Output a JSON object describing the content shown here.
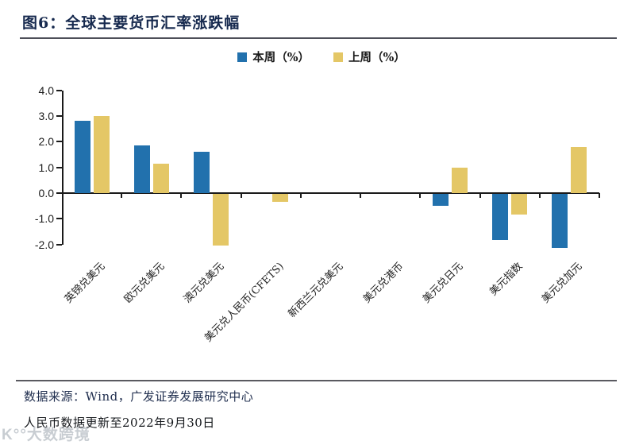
{
  "title": "图6：全球主要货币汇率涨跌幅",
  "legend": {
    "items": [
      {
        "label": "本周（%）",
        "color": "#2271AD"
      },
      {
        "label": "上周（%）",
        "color": "#E4C766"
      }
    ]
  },
  "footer": {
    "source": "数据来源：Wind，广发证券发展研究中心",
    "note": "人民币数据更新至2022年9月30日"
  },
  "watermark": "K°°大数跨境",
  "colors": {
    "this_week": "#2271AD",
    "last_week": "#E4C766",
    "title_navy": "#16294E",
    "axis": "#1a1a1a"
  },
  "chart_data": {
    "type": "bar",
    "title": "图6：全球主要货币汇率涨跌幅",
    "categories": [
      "英镑兑美元",
      "欧元兑美元",
      "澳元兑美元",
      "美元兑人民币(CFETS)",
      "新西兰元兑美元",
      "美元兑港币",
      "美元兑日元",
      "美元指数",
      "美元兑加元"
    ],
    "series": [
      {
        "name": "本周（%）",
        "color": "#2271AD",
        "values": [
          2.8,
          1.85,
          1.6,
          0.0,
          0.0,
          0.0,
          -0.45,
          -1.8,
          -2.1
        ]
      },
      {
        "name": "上周（%）",
        "color": "#E4C766",
        "values": [
          3.0,
          1.15,
          -2.0,
          -0.3,
          0.0,
          0.0,
          1.0,
          -0.8,
          1.8
        ]
      }
    ],
    "xlabel": "",
    "ylabel": "",
    "ylim": [
      -2.0,
      4.0
    ],
    "ytick_step": 1.0,
    "yticks": [
      "4.0",
      "3.0",
      "2.0",
      "1.0",
      "0.0",
      "-1.0",
      "-2.0"
    ],
    "grid": false,
    "legend_position": "top-center"
  }
}
